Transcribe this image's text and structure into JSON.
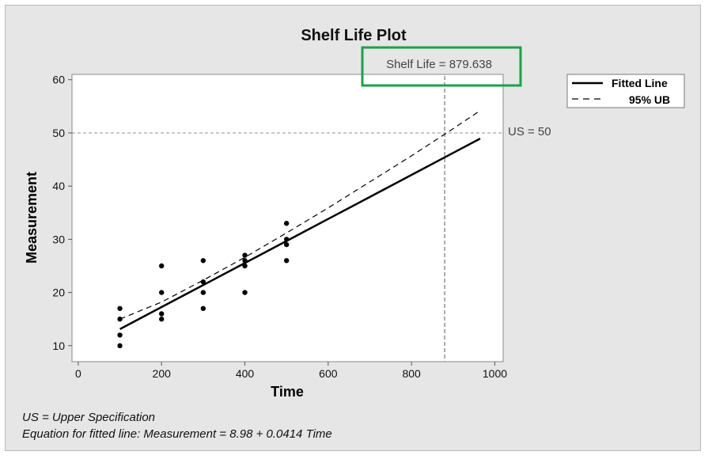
{
  "chart_data": {
    "type": "scatter",
    "title": "Shelf Life Plot",
    "xlabel": "Time",
    "ylabel": "Measurement",
    "xlim": [
      -15,
      1020
    ],
    "ylim": [
      7,
      61
    ],
    "xticks": [
      0,
      200,
      400,
      600,
      800,
      1000
    ],
    "yticks": [
      10,
      20,
      30,
      40,
      50,
      60
    ],
    "grid": false,
    "legend_position": "top-right",
    "points": [
      {
        "x": 100,
        "y": 17
      },
      {
        "x": 100,
        "y": 15
      },
      {
        "x": 100,
        "y": 12
      },
      {
        "x": 100,
        "y": 10
      },
      {
        "x": 200,
        "y": 25
      },
      {
        "x": 200,
        "y": 20
      },
      {
        "x": 200,
        "y": 16
      },
      {
        "x": 200,
        "y": 15
      },
      {
        "x": 300,
        "y": 26
      },
      {
        "x": 300,
        "y": 22
      },
      {
        "x": 300,
        "y": 20
      },
      {
        "x": 300,
        "y": 17
      },
      {
        "x": 400,
        "y": 27
      },
      {
        "x": 400,
        "y": 26
      },
      {
        "x": 400,
        "y": 25
      },
      {
        "x": 400,
        "y": 20
      },
      {
        "x": 500,
        "y": 33
      },
      {
        "x": 500,
        "y": 30
      },
      {
        "x": 500,
        "y": 29
      },
      {
        "x": 500,
        "y": 26
      }
    ],
    "series": [
      {
        "name": "Fitted Line",
        "style": "solid",
        "x": [
          100,
          200,
          300,
          400,
          500,
          600,
          700,
          800,
          900,
          965
        ],
        "y": [
          13.12,
          17.26,
          21.4,
          25.54,
          29.68,
          33.82,
          37.96,
          42.1,
          46.24,
          48.93
        ]
      },
      {
        "name": "95% UB",
        "style": "dashed",
        "x": [
          100,
          200,
          300,
          400,
          500,
          600,
          700,
          800,
          900,
          965
        ],
        "y": [
          15.0,
          18.2,
          22.3,
          26.6,
          31.2,
          35.9,
          40.8,
          45.7,
          50.8,
          54.2
        ]
      }
    ],
    "reference_lines": {
      "horizontal": {
        "y": 50,
        "label": "US = 50"
      },
      "vertical": {
        "x": 879.638,
        "label": "Shelf Life = 879.638"
      }
    },
    "colors": {
      "fitted_line": "#000000",
      "upper_bound": "#000000",
      "reference_line": "#909090",
      "highlight_box": "#1ea04a",
      "points": "#000000"
    }
  },
  "footnotes": [
    "US = Upper Specification",
    "Equation for fitted line: Measurement = 8.98 + 0.0414 Time"
  ]
}
